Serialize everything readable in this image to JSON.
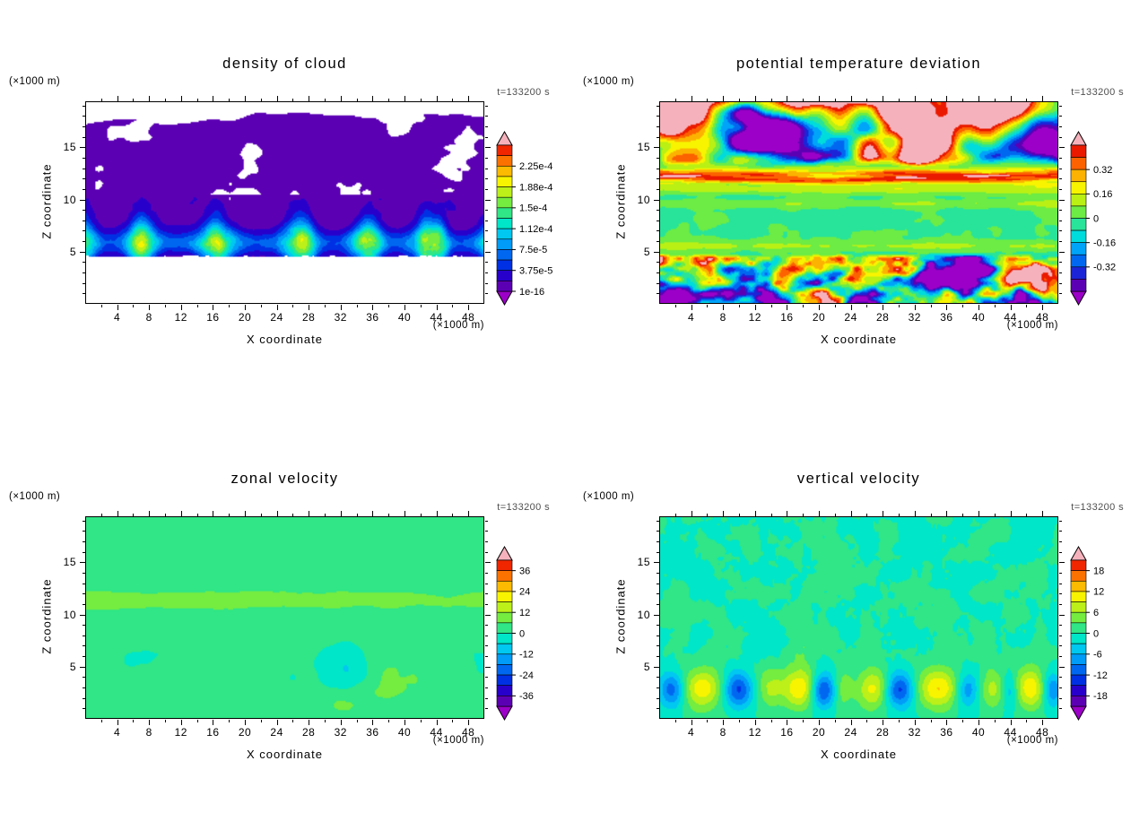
{
  "figure": {
    "background": "#ffffff",
    "text_color": "#000000",
    "timestamp_color": "#4f4f4f",
    "layout": "2x2 filled-contour panels"
  },
  "chart_data": [
    {
      "id": "density-of-cloud",
      "type": "heatmap",
      "title": "density of cloud",
      "xlabel": "X coordinate",
      "ylabel": "Z coordinate",
      "x_units": "(×1000 m)",
      "y_units": "(×1000 m)",
      "timestamp": "t=133200 s",
      "xlim": [
        0,
        50
      ],
      "ylim": [
        0,
        19.4
      ],
      "x_ticks": [
        4,
        8,
        12,
        16,
        20,
        24,
        28,
        32,
        36,
        40,
        44,
        48
      ],
      "y_ticks": [
        5,
        10,
        15
      ],
      "field": "cloud",
      "colorbar": {
        "n_segments": 14,
        "vmin": 0,
        "step": 1.875e-05,
        "labels": [
          {
            "text": "2.25e-4",
            "boundary": 12
          },
          {
            "text": "1.88e-4",
            "boundary": 10
          },
          {
            "text": "1.5e-4",
            "boundary": 8
          },
          {
            "text": "1.12e-4",
            "boundary": 6
          },
          {
            "text": "7.5e-5",
            "boundary": 4
          },
          {
            "text": "3.75e-5",
            "boundary": 2
          },
          {
            "text": "1e-16",
            "boundary": 0
          }
        ],
        "colors": [
          "#5c00b4",
          "#2800cc",
          "#0030e4",
          "#0068f0",
          "#009cf8",
          "#00c8f0",
          "#00e6c8",
          "#30e686",
          "#74ec40",
          "#bcf018",
          "#f8f400",
          "#fcba00",
          "#fc7200",
          "#f02600"
        ],
        "bottom_tip": "#9c00c8",
        "top_tip": "#f6b2bc"
      }
    },
    {
      "id": "potential-temperature-deviation",
      "type": "heatmap",
      "title": "potential temperature deviation",
      "xlabel": "X coordinate",
      "ylabel": "Z coordinate",
      "x_units": "(×1000 m)",
      "y_units": "(×1000 m)",
      "timestamp": "t=133200 s",
      "xlim": [
        0,
        50
      ],
      "ylim": [
        0,
        19.4
      ],
      "x_ticks": [
        4,
        8,
        12,
        16,
        20,
        24,
        28,
        32,
        36,
        40,
        44,
        48
      ],
      "y_ticks": [
        5,
        10,
        15
      ],
      "field": "theta",
      "colorbar": {
        "n_segments": 12,
        "vmin": -0.48,
        "step": 0.08,
        "labels": [
          {
            "text": "0.32",
            "boundary": 10
          },
          {
            "text": "0.16",
            "boundary": 8
          },
          {
            "text": "0",
            "boundary": 6
          },
          {
            "text": "-0.16",
            "boundary": 4
          },
          {
            "text": "-0.32",
            "boundary": 2
          }
        ],
        "colors": [
          "#5c00b4",
          "#1c24d8",
          "#0068f0",
          "#00a4f8",
          "#00dcdc",
          "#28e49a",
          "#6cec44",
          "#baf014",
          "#f8f400",
          "#fcb200",
          "#fc6200",
          "#ea1a00"
        ],
        "bottom_tip": "#9c00c8",
        "top_tip": "#f6b2bc"
      }
    },
    {
      "id": "zonal-velocity",
      "type": "heatmap",
      "title": "zonal velocity",
      "xlabel": "X coordinate",
      "ylabel": "Z coordinate",
      "x_units": "(×1000 m)",
      "y_units": "(×1000 m)",
      "timestamp": "t=133200 s",
      "xlim": [
        0,
        50
      ],
      "ylim": [
        0,
        19.4
      ],
      "x_ticks": [
        4,
        8,
        12,
        16,
        20,
        24,
        28,
        32,
        36,
        40,
        44,
        48
      ],
      "y_ticks": [
        5,
        10,
        15
      ],
      "field": "u",
      "colorbar": {
        "n_segments": 14,
        "vmin": -42,
        "step": 6,
        "labels": [
          {
            "text": "36",
            "boundary": 13
          },
          {
            "text": "24",
            "boundary": 11
          },
          {
            "text": "12",
            "boundary": 9
          },
          {
            "text": "0",
            "boundary": 7
          },
          {
            "text": "-12",
            "boundary": 5
          },
          {
            "text": "-24",
            "boundary": 3
          },
          {
            "text": "-36",
            "boundary": 1
          }
        ],
        "colors": [
          "#5c00b4",
          "#2800cc",
          "#0030e4",
          "#0068f0",
          "#009cf8",
          "#00c8f0",
          "#00e6c8",
          "#30e686",
          "#74ec40",
          "#bcf018",
          "#f8f400",
          "#fcba00",
          "#fc7200",
          "#f02600"
        ],
        "bottom_tip": "#9c00c8",
        "top_tip": "#f6b2bc"
      }
    },
    {
      "id": "vertical-velocity",
      "type": "heatmap",
      "title": "vertical velocity",
      "xlabel": "X coordinate",
      "ylabel": "Z coordinate",
      "x_units": "(×1000 m)",
      "y_units": "(×1000 m)",
      "timestamp": "t=133200 s",
      "xlim": [
        0,
        50
      ],
      "ylim": [
        0,
        19.4
      ],
      "x_ticks": [
        4,
        8,
        12,
        16,
        20,
        24,
        28,
        32,
        36,
        40,
        44,
        48
      ],
      "y_ticks": [
        5,
        10,
        15
      ],
      "field": "w",
      "colorbar": {
        "n_segments": 14,
        "vmin": -21,
        "step": 3,
        "labels": [
          {
            "text": "18",
            "boundary": 13
          },
          {
            "text": "12",
            "boundary": 11
          },
          {
            "text": "6",
            "boundary": 9
          },
          {
            "text": "0",
            "boundary": 7
          },
          {
            "text": "-6",
            "boundary": 5
          },
          {
            "text": "-12",
            "boundary": 3
          },
          {
            "text": "-18",
            "boundary": 1
          }
        ],
        "colors": [
          "#5c00b4",
          "#2800cc",
          "#0030e4",
          "#0068f0",
          "#009cf8",
          "#00c8f0",
          "#00e6c8",
          "#30e686",
          "#74ec40",
          "#bcf018",
          "#f8f400",
          "#fcba00",
          "#fc7200",
          "#f02600"
        ],
        "bottom_tip": "#9c00c8",
        "top_tip": "#f6b2bc"
      }
    }
  ]
}
